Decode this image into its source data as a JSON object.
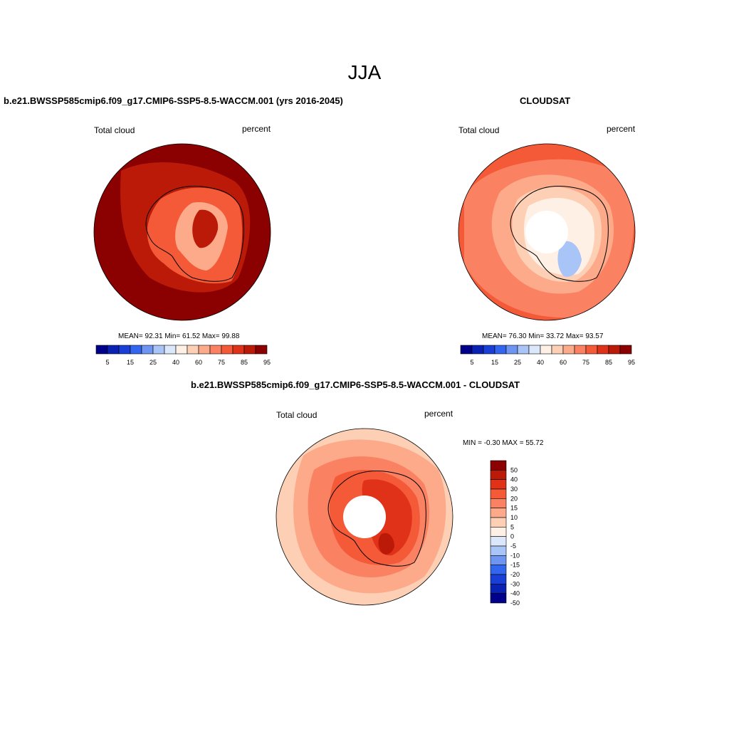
{
  "season": "JJA",
  "panels": [
    {
      "title": "b.e21.BWSSP585cmip6.f09_g17.CMIP6-SSP5-8.5-WACCM.001 (yrs 2016-2045)",
      "variable": "Total cloud",
      "units": "percent",
      "stats": "MEAN=  92.31  Min=  61.52  Max=  99.88"
    },
    {
      "title": "CLOUDSAT",
      "variable": "Total cloud",
      "units": "percent",
      "stats": "MEAN=  76.30  Min=  33.72  Max=  93.57"
    },
    {
      "title": "b.e21.BWSSP585cmip6.f09_g17.CMIP6-SSP5-8.5-WACCM.001 - CLOUDSAT",
      "variable": "Total cloud",
      "units": "percent",
      "stats": "MIN =  -0.30 MAX =  55.72"
    }
  ],
  "abs_colorbar": {
    "colors": [
      "#00008b",
      "#0a22b4",
      "#1a3fd6",
      "#3366ee",
      "#6f95f2",
      "#a9c4f6",
      "#dbe7fb",
      "#fff0e6",
      "#fdd0b6",
      "#fcaa8a",
      "#fa8262",
      "#f45a38",
      "#e03218",
      "#bb1a08",
      "#8b0000"
    ],
    "labels": [
      "5",
      "15",
      "25",
      "40",
      "60",
      "75",
      "85",
      "95"
    ]
  },
  "diff_colorbar": {
    "colors": [
      "#8b0000",
      "#bb1a08",
      "#e03218",
      "#f45a38",
      "#fa8262",
      "#fcaa8a",
      "#fdd0b6",
      "#fff0e6",
      "#dbe7fb",
      "#a9c4f6",
      "#6f95f2",
      "#3366ee",
      "#1a3fd6",
      "#0a22b4",
      "#00008b"
    ],
    "labels": [
      "50",
      "40",
      "30",
      "20",
      "15",
      "10",
      "5",
      "0",
      "-5",
      "-10",
      "-15",
      "-20",
      "-30",
      "-40",
      "-50"
    ]
  }
}
